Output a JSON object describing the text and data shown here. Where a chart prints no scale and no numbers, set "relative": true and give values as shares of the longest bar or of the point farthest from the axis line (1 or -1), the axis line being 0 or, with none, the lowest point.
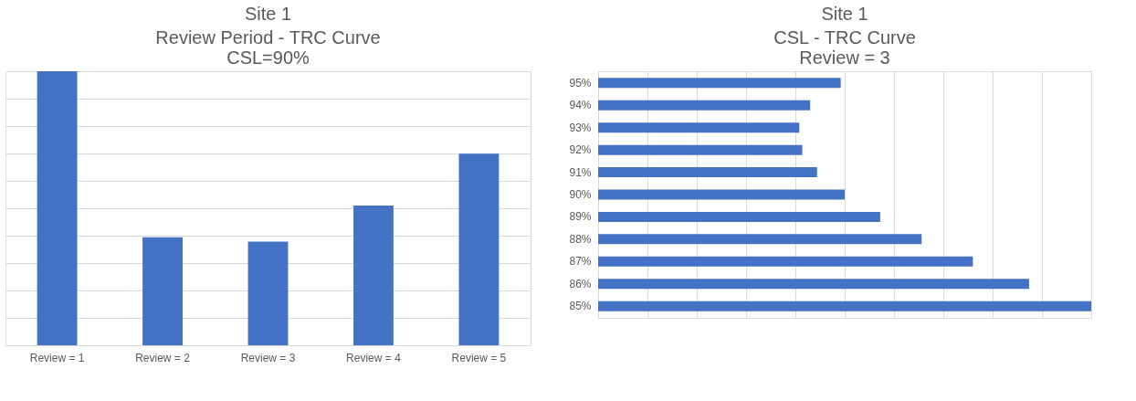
{
  "chart_data": [
    {
      "type": "bar",
      "title": "Site 1",
      "subtitle": "Review Period - TRC Curve\nCSL=90%",
      "relative": true,
      "grid": "y",
      "color": "#4472c4",
      "categories": [
        "Review = 1",
        "Review = 2",
        "Review = 3",
        "Review = 4",
        "Review = 5"
      ],
      "values": [
        1,
        0.394,
        0.378,
        0.51,
        0.699
      ]
    },
    {
      "type": "bar",
      "title": "Site 1",
      "subtitle": "CSL - TRC Curve\nReview = 3",
      "relative": true,
      "grid": "x",
      "orientation": "horizontal",
      "color": "#4472c4",
      "categories": [
        "95%",
        "94%",
        "93%",
        "92%",
        "91%",
        "90%",
        "89%",
        "88%",
        "87%",
        "86%",
        "85%"
      ],
      "values": [
        0.492,
        0.43,
        0.408,
        0.414,
        0.444,
        0.5,
        0.572,
        0.656,
        0.76,
        0.874,
        1
      ]
    }
  ]
}
